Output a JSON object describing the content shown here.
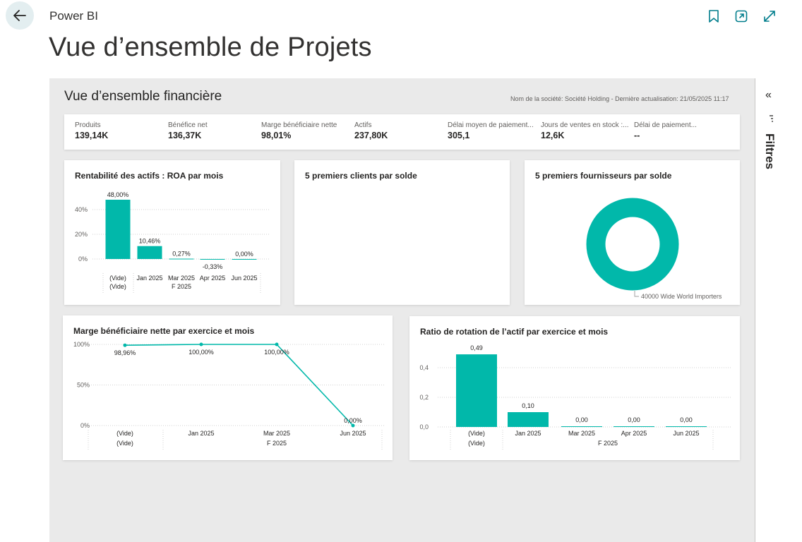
{
  "header": {
    "app_name": "Power BI",
    "page_title": "Vue d’ensemble de Projets"
  },
  "report": {
    "title": "Vue d’ensemble financière",
    "subtitle": "Nom de la société: Société Holding - Dernière actualisation: 21/05/2025 11:17"
  },
  "filters": {
    "label": "Filtres"
  },
  "kpis": [
    {
      "label": "Produits",
      "value": "139,14K"
    },
    {
      "label": "Bénéfice net",
      "value": "136,37K"
    },
    {
      "label": "Marge bénéficiaire nette",
      "value": "98,01%"
    },
    {
      "label": "Actifs",
      "value": "237,80K"
    },
    {
      "label": "Délai moyen de paiement...",
      "value": "305,1"
    },
    {
      "label": "Jours de ventes en stock :...",
      "value": "12,6K"
    },
    {
      "label": "Délai de paiement...",
      "value": "--"
    }
  ],
  "colors": {
    "accent": "#01b8aa",
    "grid": "#d0d0d0"
  },
  "chart_data": [
    {
      "id": "roa",
      "type": "bar",
      "title": "Rentabilité des actifs : ROA par mois",
      "categories": [
        "(Vide)",
        "Jan 2025",
        "Mar 2025",
        "Apr 2025",
        "Jun 2025"
      ],
      "category_sub": [
        "(Vide)",
        "F 2025"
      ],
      "values": [
        48.0,
        10.46,
        0.27,
        -0.33,
        0.0
      ],
      "data_labels": [
        "48,00%",
        "10,46%",
        "0,27%",
        "-0,33%",
        "0,00%"
      ],
      "y_ticks": [
        0,
        20,
        40
      ],
      "y_tick_labels": [
        "0%",
        "20%",
        "40%"
      ]
    },
    {
      "id": "clients",
      "type": "table",
      "title": "5 premiers clients par solde"
    },
    {
      "id": "fournisseurs",
      "type": "pie",
      "title": "5 premiers fournisseurs par solde",
      "slices": [
        {
          "label": "40000 Wide World Importers",
          "value": 100
        }
      ]
    },
    {
      "id": "marge",
      "type": "line",
      "title": "Marge bénéficiaire nette par exercice et mois",
      "categories": [
        "(Vide)",
        "Jan 2025",
        "Mar 2025",
        "Jun 2025"
      ],
      "category_sub": [
        "(Vide)",
        "F 2025"
      ],
      "values": [
        98.96,
        100.0,
        100.0,
        0.0
      ],
      "data_labels": [
        "98,96%",
        "100,00%",
        "100,00%",
        "0,00%"
      ],
      "y_ticks": [
        0,
        50,
        100
      ],
      "y_tick_labels": [
        "0%",
        "50%",
        "100%"
      ]
    },
    {
      "id": "rotation",
      "type": "bar",
      "title": "Ratio de rotation de l’actif par exercice et mois",
      "categories": [
        "(Vide)",
        "Jan 2025",
        "Mar 2025",
        "Apr 2025",
        "Jun 2025"
      ],
      "category_sub": [
        "(Vide)",
        "F 2025"
      ],
      "values": [
        0.49,
        0.1,
        0.0,
        0.0,
        0.0
      ],
      "data_labels": [
        "0,49",
        "0,10",
        "0,00",
        "0,00",
        "0,00"
      ],
      "y_ticks": [
        0,
        0.2,
        0.4
      ],
      "y_tick_labels": [
        "0,0",
        "0,2",
        "0,4"
      ]
    }
  ]
}
